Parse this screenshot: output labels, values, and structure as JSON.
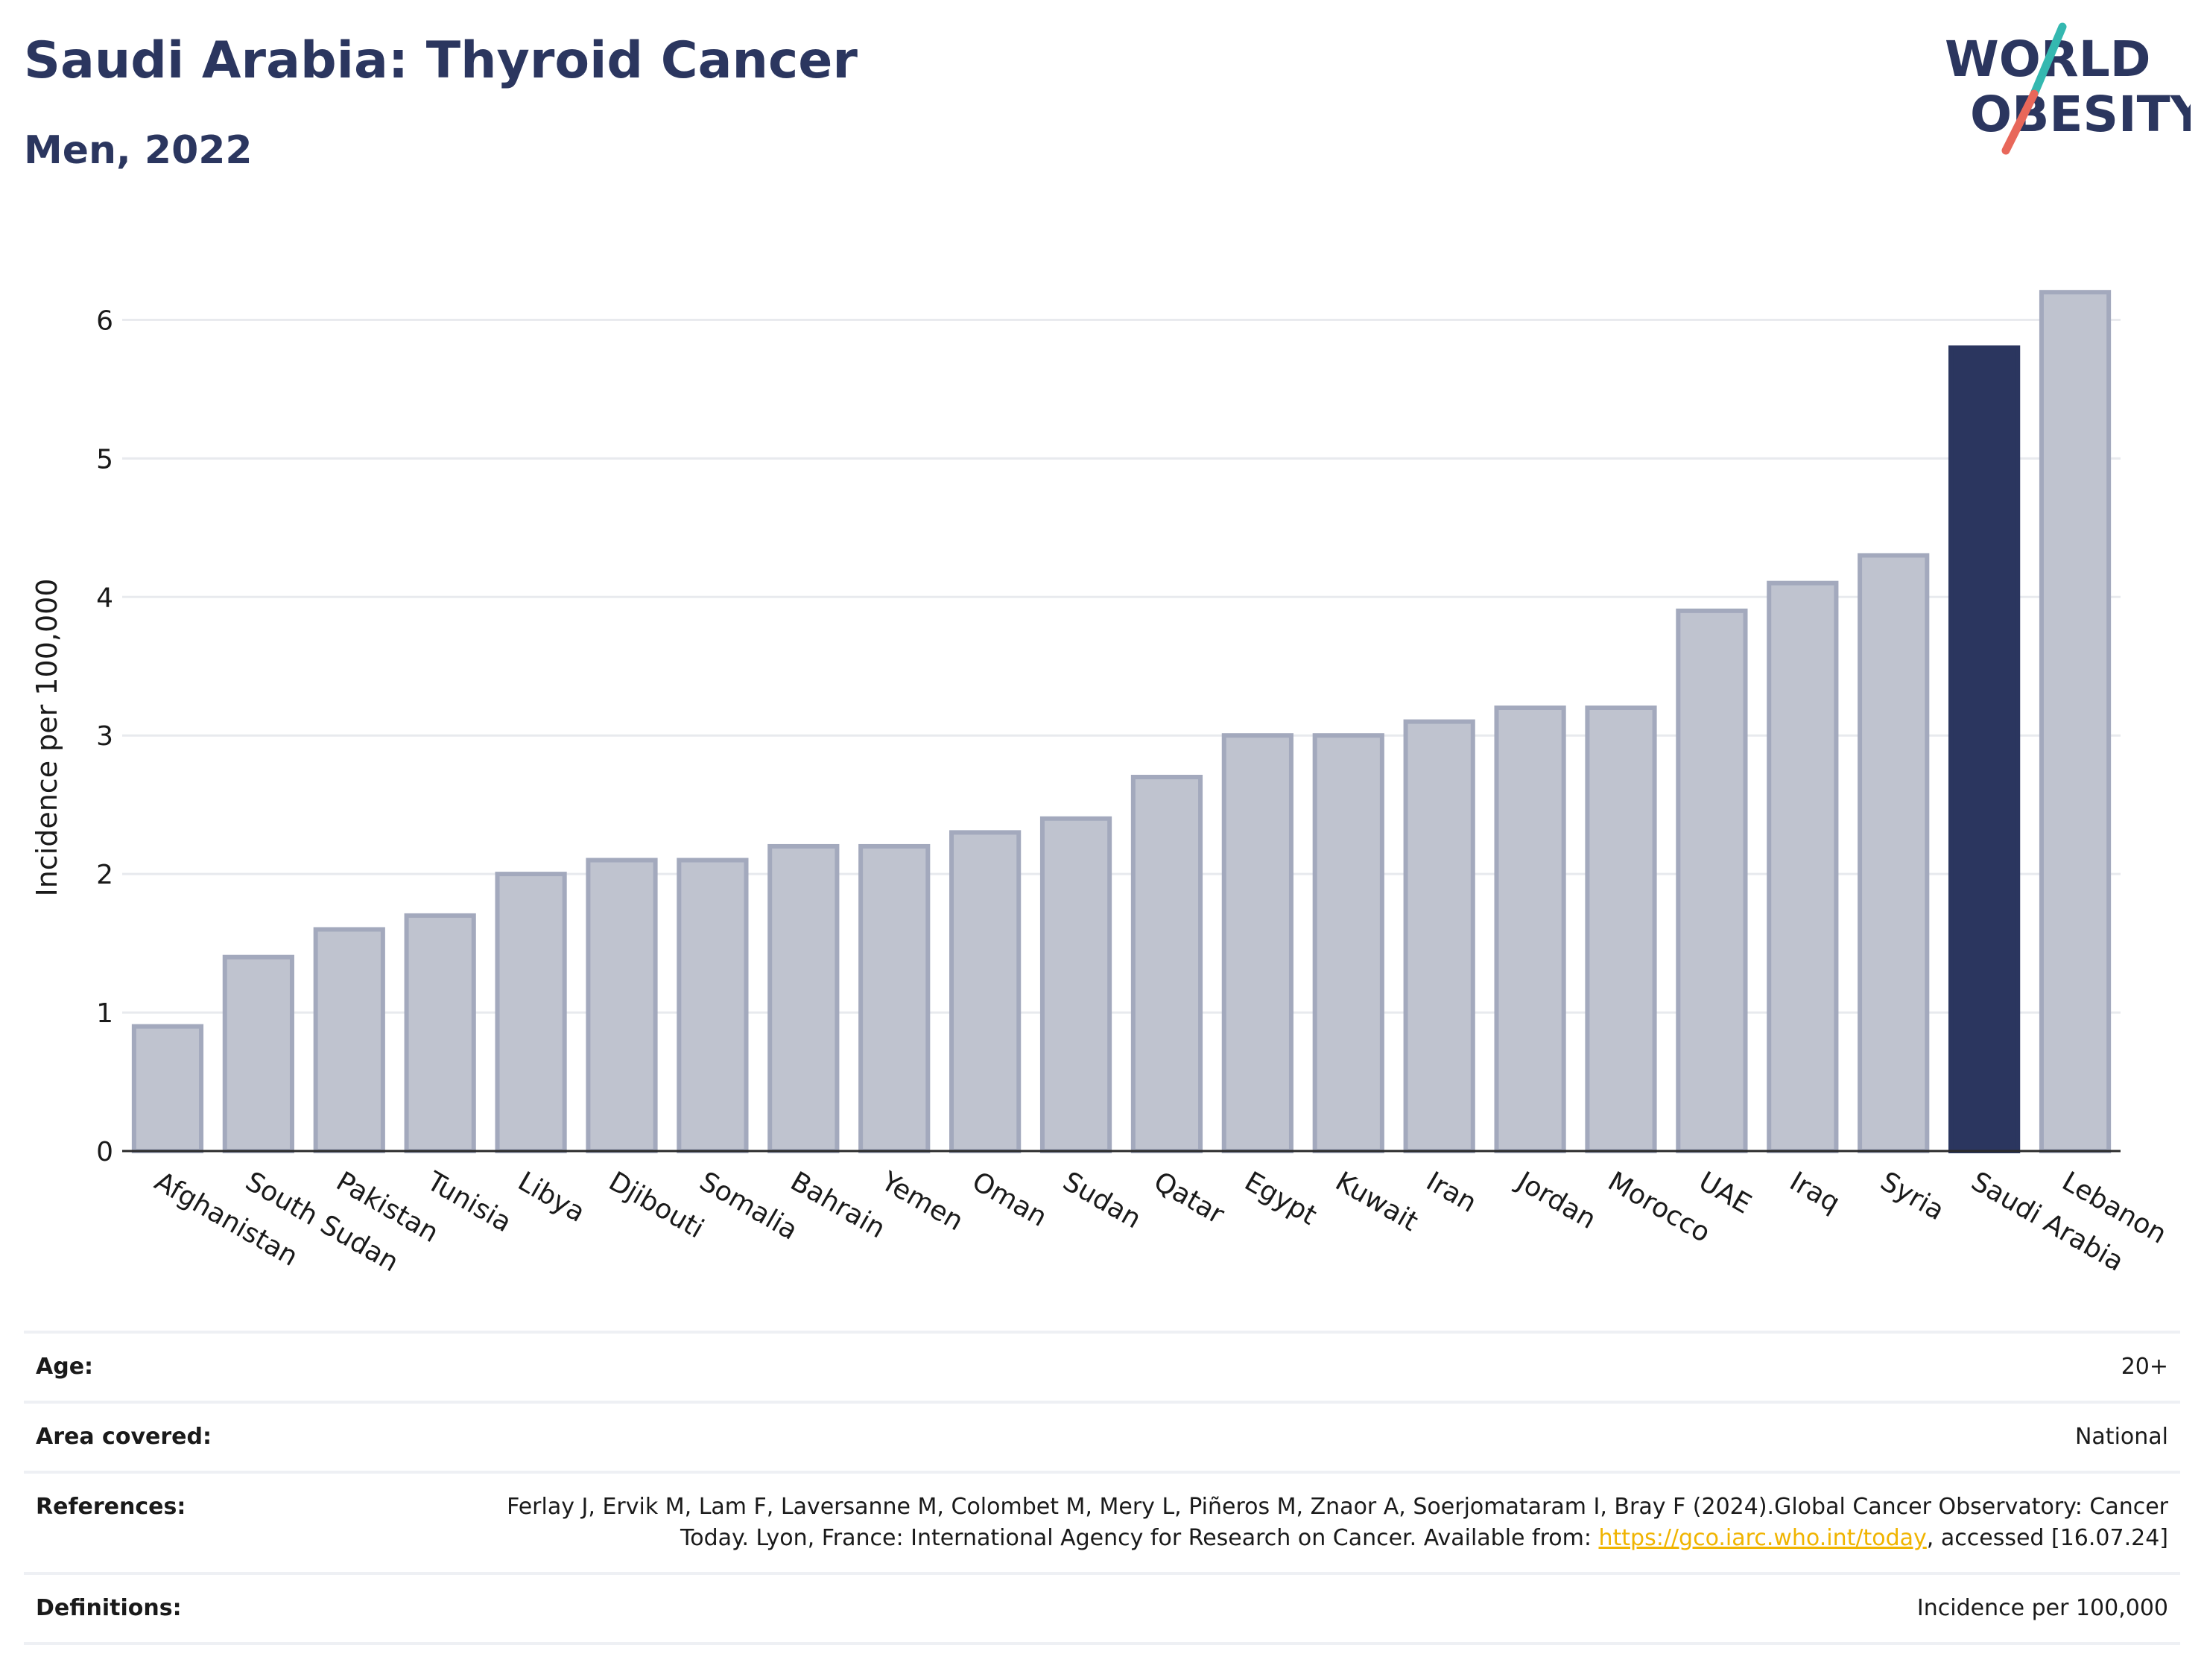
{
  "header": {
    "title": "Saudi Arabia: Thyroid Cancer",
    "subtitle": "Men, 2022"
  },
  "logo": {
    "line1": "WORLD",
    "line2": "OBESITY",
    "colors": {
      "text": "#2b365f",
      "slash_red": "#e8675a",
      "slash_teal": "#34b8b0"
    }
  },
  "chart_data": {
    "type": "bar",
    "title": "",
    "xlabel": "",
    "ylabel": "Incidence per 100,000",
    "ylim": [
      0,
      6.4
    ],
    "yticks": [
      0,
      1,
      2,
      3,
      4,
      5,
      6
    ],
    "grid": true,
    "highlight": "Saudi Arabia",
    "colors": {
      "bar": "#bfc3cf",
      "bar_edge": "#a3a9bd",
      "highlight": "#2b365f"
    },
    "categories": [
      "Afghanistan",
      "South Sudan",
      "Pakistan",
      "Tunisia",
      "Libya",
      "Djibouti",
      "Somalia",
      "Bahrain",
      "Yemen",
      "Oman",
      "Sudan",
      "Qatar",
      "Egypt",
      "Kuwait",
      "Iran",
      "Jordan",
      "Morocco",
      "UAE",
      "Iraq",
      "Syria",
      "Saudi Arabia",
      "Lebanon"
    ],
    "values": [
      0.9,
      1.4,
      1.6,
      1.7,
      2.0,
      2.1,
      2.1,
      2.2,
      2.2,
      2.3,
      2.4,
      2.7,
      3.0,
      3.0,
      3.1,
      3.2,
      3.2,
      3.9,
      4.1,
      4.3,
      5.8,
      6.2
    ]
  },
  "info": {
    "age": {
      "label": "Age:",
      "value": "20+"
    },
    "area": {
      "label": "Area covered:",
      "value": "National"
    },
    "references": {
      "label": "References:",
      "text_before": "Ferlay J, Ervik M, Lam F, Laversanne M, Colombet M, Mery L, Piñeros M, Znaor A, Soerjomataram I, Bray F (2024).Global Cancer Observatory: Cancer Today. Lyon, France: International Agency for Research on Cancer. Available from: ",
      "link": "https://gco.iarc.who.int/today",
      "text_after": ", accessed [16.07.24]"
    },
    "definitions": {
      "label": "Definitions:",
      "value": "Incidence per 100,000"
    }
  }
}
